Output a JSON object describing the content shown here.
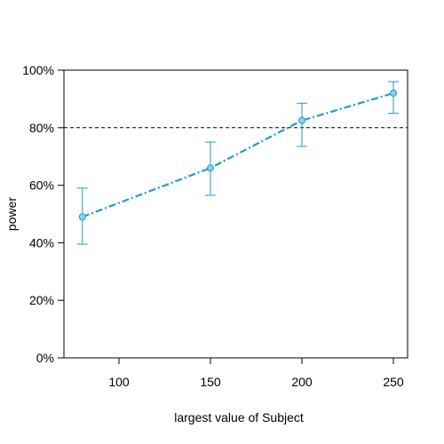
{
  "chart_data": {
    "type": "line",
    "xlabel": "largest value of Subject",
    "ylabel": "power",
    "xlim": [
      70,
      255
    ],
    "ylim": [
      0,
      1
    ],
    "x_ticks": [
      100,
      150,
      200,
      250
    ],
    "y_ticks": [
      0,
      0.2,
      0.4,
      0.6,
      0.8,
      1.0
    ],
    "y_tick_labels": [
      "0%",
      "20%",
      "40%",
      "60%",
      "80%",
      "100%"
    ],
    "reference_line": {
      "y": 0.8,
      "style": "dashed",
      "color": "#000000"
    },
    "series": [
      {
        "color": "#1a9ec9",
        "marker_fill": "#7fd6ee",
        "line_style": "dash-dot",
        "points": [
          {
            "x": 80,
            "y": 0.49,
            "lower": 0.395,
            "upper": 0.59
          },
          {
            "x": 150,
            "y": 0.66,
            "lower": 0.565,
            "upper": 0.75
          },
          {
            "x": 200,
            "y": 0.825,
            "lower": 0.735,
            "upper": 0.885
          },
          {
            "x": 250,
            "y": 0.92,
            "lower": 0.85,
            "upper": 0.96
          }
        ]
      }
    ]
  }
}
